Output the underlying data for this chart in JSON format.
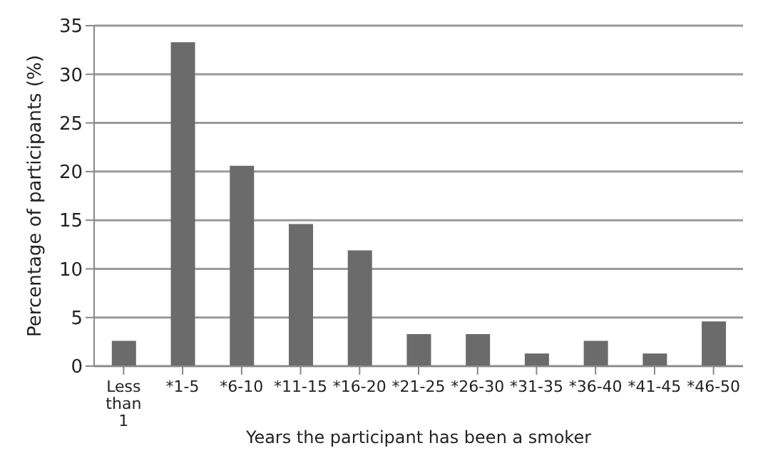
{
  "chart_data": {
    "type": "bar",
    "xlabel": "Years the participant has been a smoker",
    "ylabel": "Percentage of participants (%)",
    "categories": [
      "Less than 1",
      "*1-5",
      "*6-10",
      "*11-15",
      "*16-20",
      "*21-25",
      "*26-30",
      "*31-35",
      "*36-40",
      "*41-45",
      "*46-50"
    ],
    "values": [
      2.6,
      33.3,
      20.6,
      14.6,
      11.9,
      3.3,
      3.3,
      1.3,
      2.6,
      1.3,
      4.6
    ],
    "color": "#6b6b6b",
    "ylim": [
      0,
      35
    ],
    "yticks": [
      0,
      5,
      10,
      15,
      20,
      25,
      30,
      35
    ],
    "grid": "y"
  }
}
